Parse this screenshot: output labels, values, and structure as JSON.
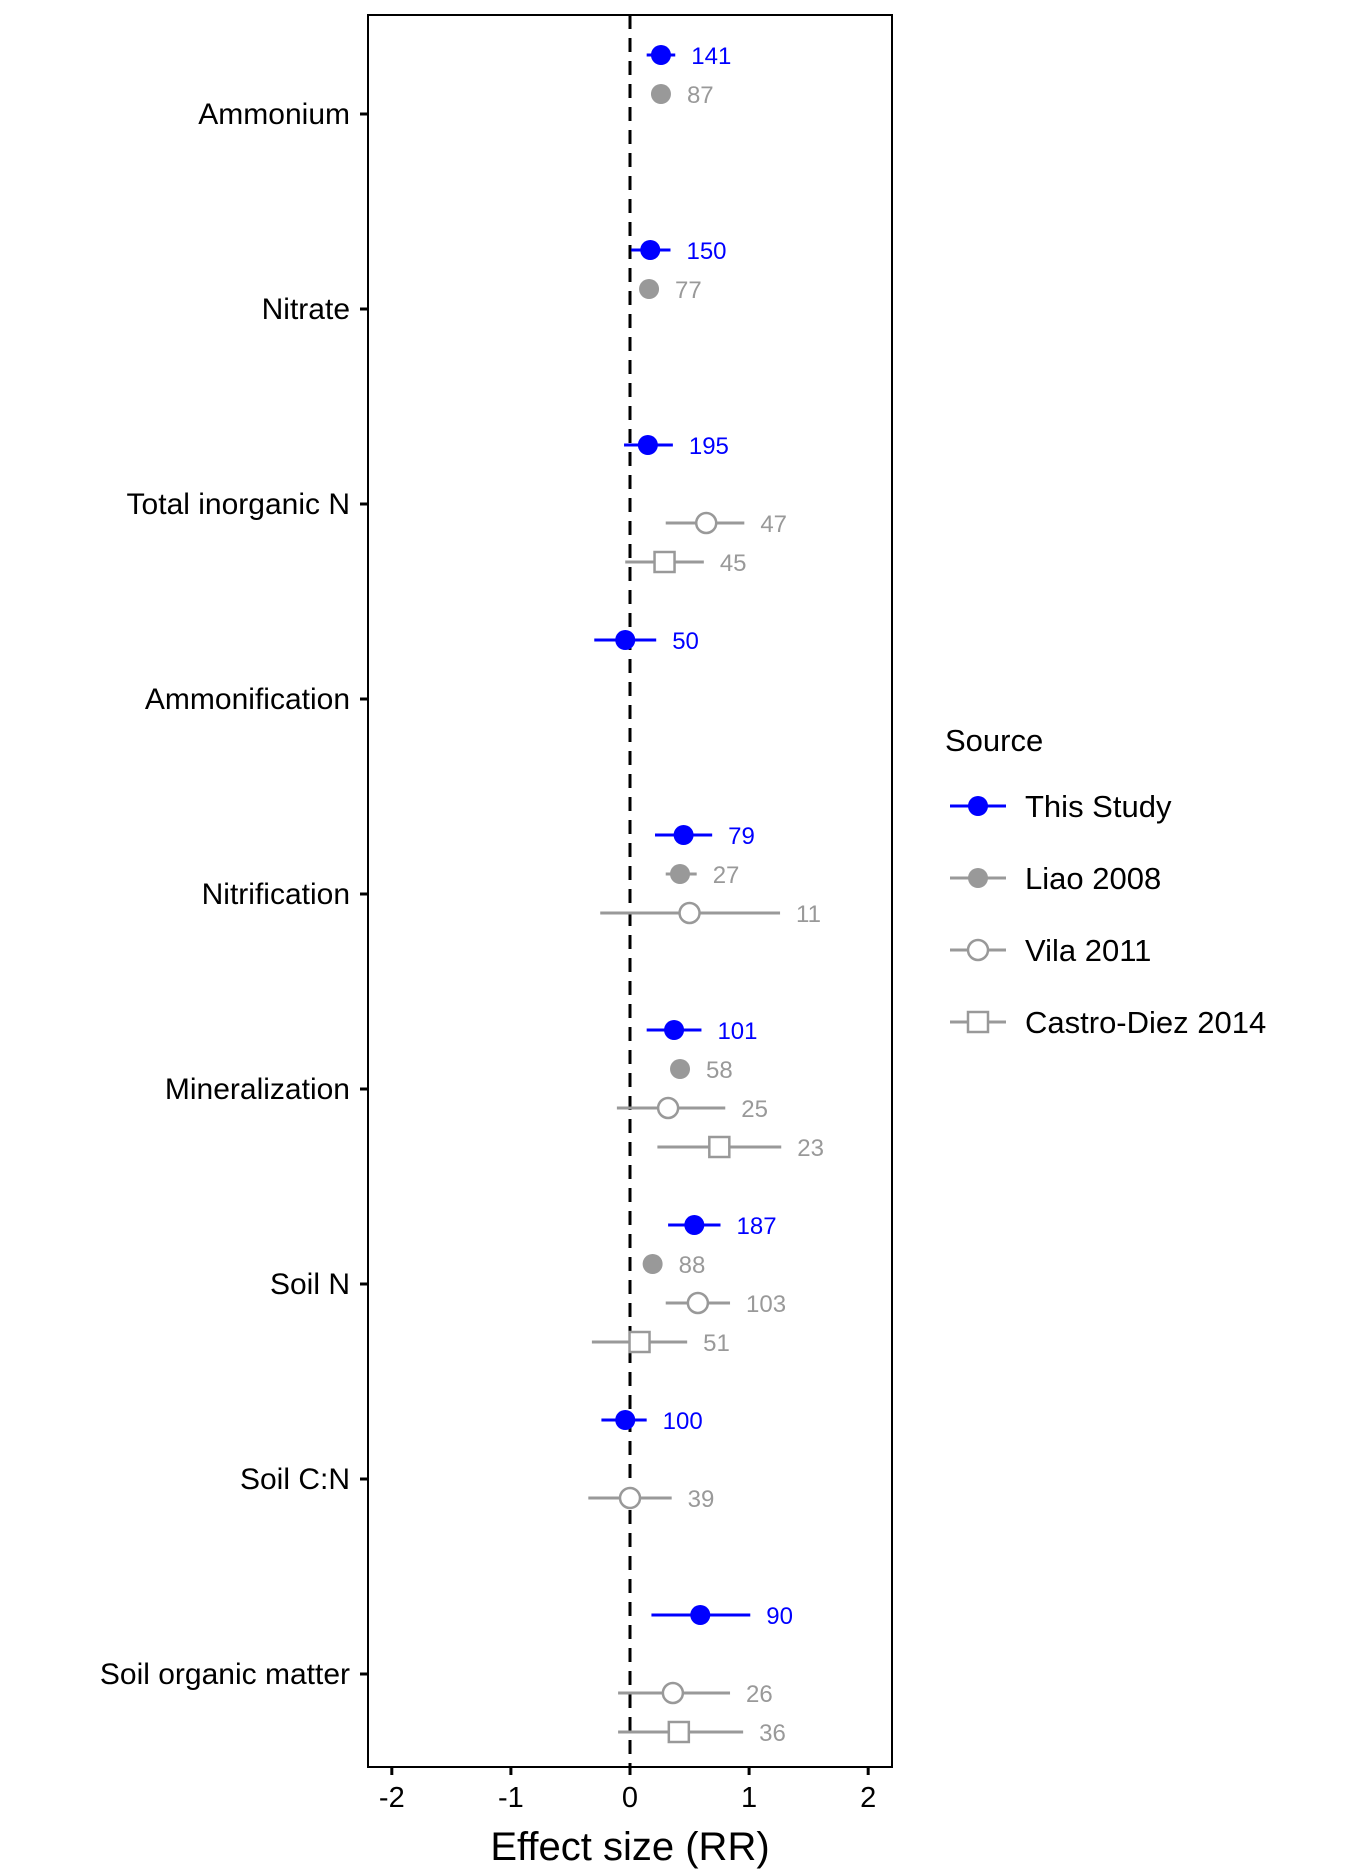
{
  "chart_data": {
    "type": "forest",
    "xlabel": "Effect size (RR)",
    "xlim": [
      -2.2,
      2.2
    ],
    "xticks": [
      -2,
      -1,
      0,
      1,
      2
    ],
    "reference_line": 0,
    "grid": false,
    "legend": {
      "title": "Source",
      "position": "right"
    },
    "categories": [
      "Ammonium",
      "Nitrate",
      "Total inorganic N",
      "Ammonification",
      "Nitrification",
      "Mineralization",
      "Soil N",
      "Soil C:N",
      "Soil organic matter"
    ],
    "series": [
      {
        "name": "This Study",
        "color": "#0000ff",
        "marker": "filled-circle",
        "points": [
          {
            "category": "Ammonium",
            "est": 0.26,
            "lo": 0.14,
            "hi": 0.38,
            "n": "141"
          },
          {
            "category": "Nitrate",
            "est": 0.17,
            "lo": 0.01,
            "hi": 0.34,
            "n": "150"
          },
          {
            "category": "Total inorganic N",
            "est": 0.15,
            "lo": -0.05,
            "hi": 0.36,
            "n": "195"
          },
          {
            "category": "Ammonification",
            "est": -0.04,
            "lo": -0.3,
            "hi": 0.22,
            "n": "50"
          },
          {
            "category": "Nitrification",
            "est": 0.45,
            "lo": 0.21,
            "hi": 0.69,
            "n": "79"
          },
          {
            "category": "Mineralization",
            "est": 0.37,
            "lo": 0.14,
            "hi": 0.6,
            "n": "101"
          },
          {
            "category": "Soil N",
            "est": 0.54,
            "lo": 0.32,
            "hi": 0.76,
            "n": "187"
          },
          {
            "category": "Soil C:N",
            "est": -0.04,
            "lo": -0.24,
            "hi": 0.14,
            "n": "100"
          },
          {
            "category": "Soil organic matter",
            "est": 0.59,
            "lo": 0.18,
            "hi": 1.01,
            "n": "90"
          }
        ]
      },
      {
        "name": "Liao 2008",
        "color": "#999999",
        "marker": "filled-circle",
        "points": [
          {
            "category": "Ammonium",
            "est": 0.26,
            "lo": 0.26,
            "hi": 0.26,
            "n": "87"
          },
          {
            "category": "Nitrate",
            "est": 0.16,
            "lo": 0.16,
            "hi": 0.16,
            "n": "77"
          },
          {
            "category": "Nitrification",
            "est": 0.42,
            "lo": 0.3,
            "hi": 0.56,
            "n": "27"
          },
          {
            "category": "Mineralization",
            "est": 0.42,
            "lo": 0.42,
            "hi": 0.42,
            "n": "58"
          },
          {
            "category": "Soil N",
            "est": 0.19,
            "lo": 0.19,
            "hi": 0.19,
            "n": "88"
          }
        ]
      },
      {
        "name": "Vila 2011",
        "color": "#999999",
        "marker": "open-circle",
        "points": [
          {
            "category": "Total inorganic N",
            "est": 0.64,
            "lo": 0.3,
            "hi": 0.96,
            "n": "47"
          },
          {
            "category": "Nitrification",
            "est": 0.5,
            "lo": -0.25,
            "hi": 1.26,
            "n": "11"
          },
          {
            "category": "Mineralization",
            "est": 0.32,
            "lo": -0.11,
            "hi": 0.8,
            "n": "25"
          },
          {
            "category": "Soil N",
            "est": 0.57,
            "lo": 0.3,
            "hi": 0.84,
            "n": "103"
          },
          {
            "category": "Soil C:N",
            "est": 0.0,
            "lo": -0.35,
            "hi": 0.35,
            "n": "39"
          },
          {
            "category": "Soil organic matter",
            "est": 0.36,
            "lo": -0.1,
            "hi": 0.84,
            "n": "26"
          }
        ]
      },
      {
        "name": "Castro-Diez 2014",
        "color": "#999999",
        "marker": "open-square",
        "points": [
          {
            "category": "Total inorganic N",
            "est": 0.29,
            "lo": -0.04,
            "hi": 0.62,
            "n": "45"
          },
          {
            "category": "Mineralization",
            "est": 0.75,
            "lo": 0.23,
            "hi": 1.27,
            "n": "23"
          },
          {
            "category": "Soil N",
            "est": 0.08,
            "lo": -0.32,
            "hi": 0.48,
            "n": "51"
          },
          {
            "category": "Soil organic matter",
            "est": 0.41,
            "lo": -0.1,
            "hi": 0.95,
            "n": "36"
          }
        ]
      }
    ]
  }
}
